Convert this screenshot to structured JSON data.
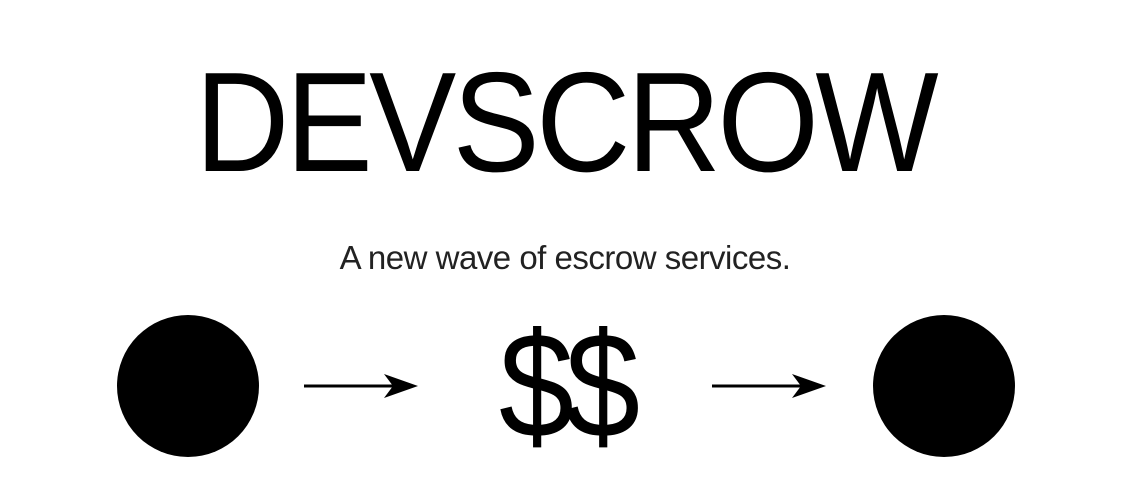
{
  "hero": {
    "title": "DEVSCROW",
    "tagline": "A new wave of escrow services."
  },
  "flow": {
    "middle_label": "$$",
    "icons": {
      "left": "party-circle",
      "arrow_one": "right-arrow",
      "arrow_two": "right-arrow",
      "right": "party-circle"
    }
  }
}
